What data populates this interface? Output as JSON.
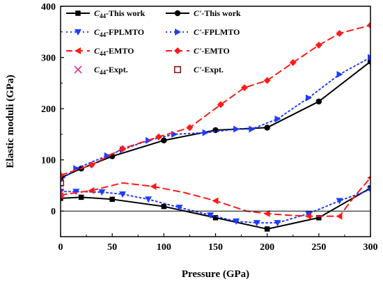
{
  "chart_data": {
    "type": "line",
    "title": "",
    "xlabel": "Pressure (GPa)",
    "ylabel": "Elastic moduli (GPa)",
    "xlim": [
      0,
      300
    ],
    "ylim": [
      -50,
      400
    ],
    "xticks": [
      "0",
      "50",
      "100",
      "150",
      "200",
      "250",
      "300"
    ],
    "yticks": [
      "0",
      "100",
      "200",
      "300",
      "400"
    ],
    "grid": false,
    "zero_line": true,
    "legend_position": "top-left",
    "series": [
      {
        "name": "C44-This work",
        "legend_base": "C",
        "legend_sub": "44",
        "legend_rest": "-This work",
        "color": "#000000",
        "dash": "solid",
        "marker": "square",
        "marker_every": 1,
        "x": [
          0,
          20,
          50,
          100,
          150,
          200,
          250,
          300
        ],
        "y": [
          25,
          27,
          23,
          9,
          -13,
          -35,
          -13,
          45
        ]
      },
      {
        "name": "C'-This work",
        "legend_base": "C'",
        "legend_sub": "",
        "legend_rest": "-This work",
        "color": "#000000",
        "dash": "solid",
        "marker": "circle",
        "marker_every": 1,
        "x": [
          0,
          20,
          50,
          100,
          150,
          200,
          250,
          300
        ],
        "y": [
          65,
          83,
          107,
          138,
          158,
          163,
          214,
          292
        ]
      },
      {
        "name": "C44-FPLMTO",
        "legend_base": "C",
        "legend_sub": "44",
        "legend_rest": "-FPLMTO",
        "color": "#1f3cff",
        "dash": "dot",
        "marker": "triangle-down",
        "marker_every": 1,
        "x": [
          0,
          15,
          40,
          60,
          85,
          115,
          145,
          170,
          190,
          210,
          240,
          270,
          300
        ],
        "y": [
          38,
          38,
          37,
          33,
          23,
          7,
          -8,
          -20,
          -23,
          -23,
          -5,
          20,
          42
        ]
      },
      {
        "name": "C'-FPLMTO",
        "legend_base": "C'",
        "legend_sub": "",
        "legend_rest": "-FPLMTO",
        "color": "#1f3cff",
        "dash": "dot",
        "marker": "triangle-right",
        "marker_every": 1,
        "x": [
          0,
          15,
          45,
          60,
          85,
          110,
          140,
          170,
          185,
          210,
          240,
          270,
          300
        ],
        "y": [
          60,
          83,
          108,
          120,
          138,
          150,
          153,
          160,
          160,
          180,
          221,
          267,
          300
        ]
      },
      {
        "name": "C44-EMTO",
        "legend_base": "C",
        "legend_sub": "44",
        "legend_rest": "-EMTO",
        "color": "#ff1a1a",
        "dash": "dash",
        "marker": "triangle-left",
        "marker_every": 2,
        "x": [
          0,
          5,
          30,
          60,
          90,
          120,
          150,
          180,
          200,
          220,
          240,
          260,
          270,
          285,
          300
        ],
        "y": [
          30,
          33,
          40,
          55,
          48,
          36,
          20,
          0,
          -5,
          -8,
          -10,
          -10,
          -10,
          30,
          65
        ]
      },
      {
        "name": "C'-EMTO",
        "legend_base": "C'",
        "legend_sub": "",
        "legend_rest": "-EMTO",
        "color": "#ff1a1a",
        "dash": "dash",
        "marker": "diamond",
        "marker_every": 1,
        "x": [
          0,
          30,
          60,
          95,
          125,
          155,
          178,
          200,
          225,
          250,
          270,
          300
        ],
        "y": [
          70,
          90,
          122,
          145,
          163,
          208,
          241,
          255,
          290,
          324,
          347,
          363
        ]
      },
      {
        "name": "C44-Expt.",
        "legend_base": "C",
        "legend_sub": "44",
        "legend_rest": "-Expt.",
        "color": "#e0309a",
        "dash": "none",
        "marker": "x",
        "marker_every": 1,
        "x": [
          0
        ],
        "y": [
          35
        ]
      },
      {
        "name": "C'-Expt.",
        "legend_base": "C'",
        "legend_sub": "",
        "legend_rest": "-Expt.",
        "color": "#8b1a1a",
        "dash": "none",
        "marker": "square-open",
        "marker_every": 1,
        "x": [
          0
        ],
        "y": [
          55
        ]
      }
    ]
  }
}
